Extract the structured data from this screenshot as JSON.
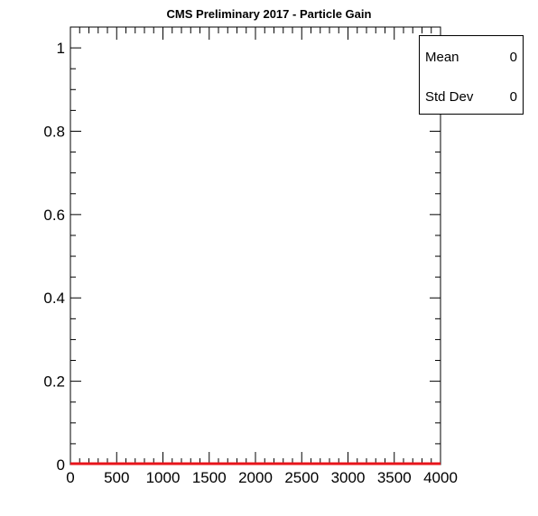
{
  "chart_data": {
    "type": "line",
    "title": "CMS Preliminary 2017  -  Particle Gain",
    "xlabel": "",
    "ylabel": "",
    "xlim": [
      0,
      4000
    ],
    "ylim": [
      0,
      1.05
    ],
    "x_ticks": [
      0,
      500,
      1000,
      1500,
      2000,
      2500,
      3000,
      3500,
      4000
    ],
    "x_tick_labels": [
      "0",
      "500",
      "1000",
      "1500",
      "2000",
      "2500",
      "3000",
      "3500",
      "4000"
    ],
    "y_ticks": [
      0,
      0.2,
      0.4,
      0.6,
      0.8,
      1
    ],
    "y_tick_labels": [
      "0",
      "0.2",
      "0.4",
      "0.6",
      "0.8",
      "1"
    ],
    "grid": false,
    "series": [
      {
        "x": [
          0,
          4000
        ],
        "y": [
          0,
          0
        ],
        "color": "#e8141a"
      }
    ]
  },
  "stats": [
    {
      "label": "Mean",
      "value": "0"
    },
    {
      "label": "Std Dev",
      "value": "0"
    }
  ]
}
